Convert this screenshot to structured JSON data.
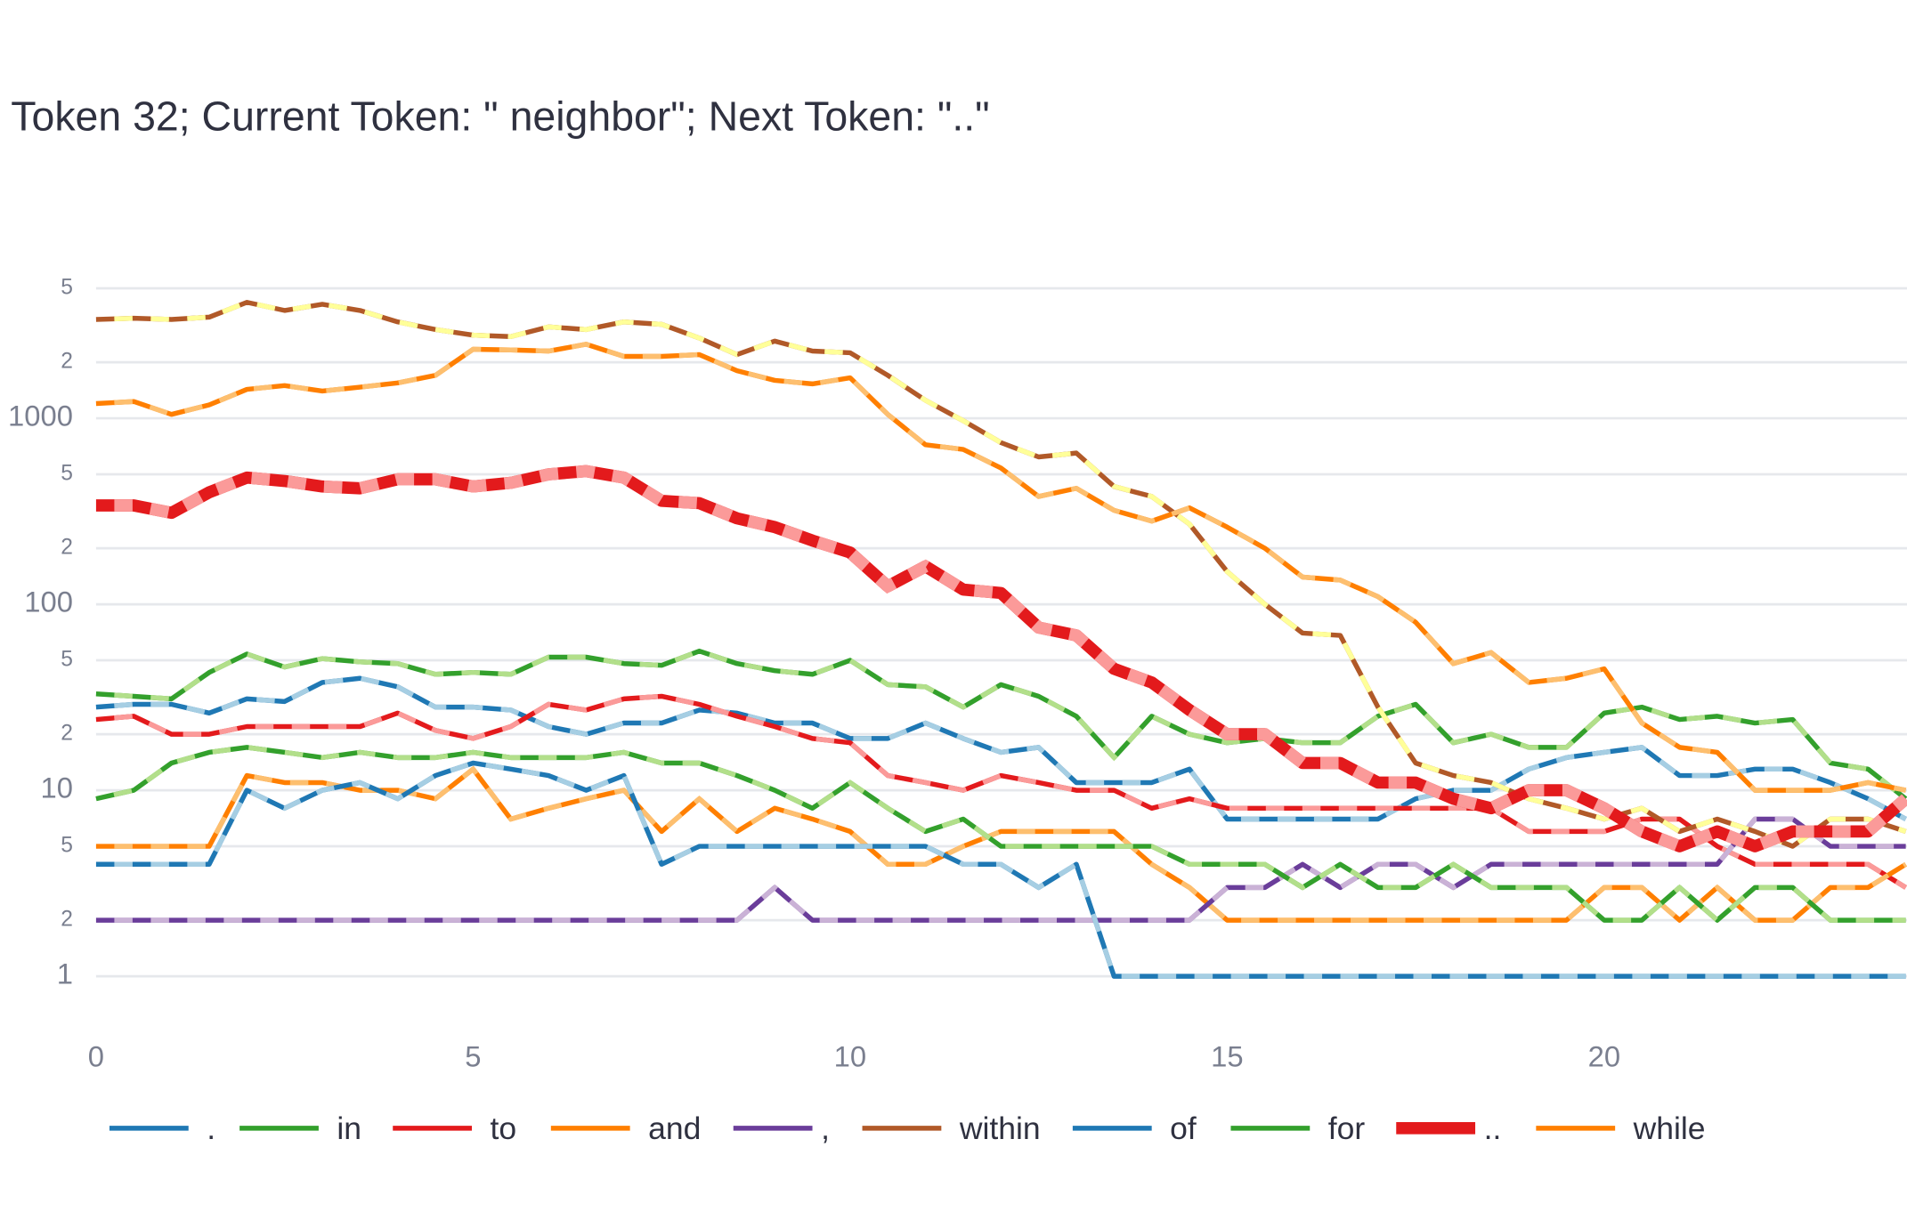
{
  "chart_data": {
    "type": "line",
    "title": "Token 32; Current Token: \" neighbor\"; Next Token: \"..\"",
    "yscale": "log",
    "grid": true,
    "xlim": [
      0,
      24
    ],
    "xticks": [
      0,
      5,
      10,
      15,
      20
    ],
    "ylim": [
      0.57,
      8700
    ],
    "yticks": [
      1,
      2,
      5,
      10,
      {
        "value": 20,
        "label": "2"
      },
      {
        "value": 50,
        "label": "5"
      },
      100,
      {
        "value": 200,
        "label": "2"
      },
      {
        "value": 500,
        "label": "5"
      },
      1000,
      {
        "value": 2000,
        "label": "2"
      },
      {
        "value": 5000,
        "label": "5"
      }
    ],
    "x": [
      0,
      0.5,
      1,
      1.5,
      2,
      2.5,
      3,
      3.5,
      4,
      4.5,
      5,
      5.5,
      6,
      6.5,
      7,
      7.5,
      8,
      8.5,
      9,
      9.5,
      10,
      10.5,
      11,
      11.5,
      12,
      12.5,
      13,
      13.5,
      14,
      14.5,
      15,
      15.5,
      16,
      16.5,
      17,
      17.5,
      18,
      18.5,
      19,
      19.5,
      20,
      20.5,
      21,
      21.5,
      22,
      22.5,
      23,
      23.5,
      24
    ],
    "series": [
      {
        "name": ".",
        "color": "#1f78b4",
        "alt_color": "#a6cee3",
        "values": [
          28,
          29,
          29,
          26,
          31,
          30,
          38,
          40,
          36,
          28,
          28,
          27,
          22,
          20,
          23,
          23,
          27,
          26,
          23,
          23,
          19,
          19,
          23,
          19,
          16,
          17,
          11,
          11,
          11,
          13,
          7,
          7,
          7,
          7,
          7,
          9,
          10,
          10,
          13,
          15,
          16,
          17,
          12,
          12,
          13,
          13,
          11,
          9,
          7
        ]
      },
      {
        "name": "in",
        "color": "#33a02c",
        "alt_color": "#b2df8a",
        "values": [
          33,
          32,
          31,
          43,
          54,
          46,
          51,
          49,
          48,
          42,
          43,
          42,
          52,
          52,
          48,
          47,
          56,
          48,
          44,
          42,
          50,
          37,
          36,
          28,
          37,
          32,
          25,
          15,
          25,
          20,
          18,
          19,
          18,
          18,
          25,
          29,
          18,
          20,
          17,
          17,
          26,
          28,
          24,
          25,
          23,
          24,
          14,
          13,
          9
        ]
      },
      {
        "name": "to",
        "color": "#e31a1c",
        "alt_color": "#fb9a99",
        "values": [
          24,
          25,
          20,
          20,
          22,
          22,
          22,
          22,
          26,
          21,
          19,
          22,
          29,
          27,
          31,
          32,
          29,
          25,
          22,
          19,
          18,
          12,
          11,
          10,
          12,
          11,
          10,
          10,
          8,
          9,
          8,
          8,
          8,
          8,
          8,
          8,
          8,
          8,
          6,
          6,
          6,
          7,
          7,
          5,
          4,
          4,
          4,
          4,
          3
        ]
      },
      {
        "name": "and",
        "color": "#ff7f00",
        "alt_color": "#fdbf6f",
        "values": [
          5,
          5,
          5,
          5,
          12,
          11,
          11,
          10,
          10,
          9,
          13,
          7,
          8,
          9,
          10,
          6,
          9,
          6,
          8,
          7,
          6,
          4,
          4,
          5,
          6,
          6,
          6,
          6,
          4,
          3,
          2,
          2,
          2,
          2,
          2,
          2,
          2,
          2,
          2,
          2,
          3,
          3,
          2,
          3,
          2,
          2,
          3,
          3,
          4
        ]
      },
      {
        "name": ",",
        "color": "#6a3d9a",
        "alt_color": "#cab2d6",
        "values": [
          2,
          2,
          2,
          2,
          2,
          2,
          2,
          2,
          2,
          2,
          2,
          2,
          2,
          2,
          2,
          2,
          2,
          2,
          3,
          2,
          2,
          2,
          2,
          2,
          2,
          2,
          2,
          2,
          2,
          2,
          3,
          3,
          4,
          3,
          4,
          4,
          3,
          4,
          4,
          4,
          4,
          4,
          4,
          4,
          7,
          7,
          5,
          5,
          5
        ]
      },
      {
        "name": "within",
        "color": "#b15928",
        "alt_color": "#ffff99",
        "values": [
          3400,
          3450,
          3400,
          3500,
          4200,
          3800,
          4100,
          3800,
          3300,
          3000,
          2800,
          2750,
          3100,
          3000,
          3300,
          3200,
          2700,
          2200,
          2600,
          2300,
          2250,
          1700,
          1250,
          970,
          740,
          620,
          650,
          430,
          380,
          270,
          150,
          100,
          70,
          68,
          28,
          14,
          12,
          11,
          9,
          8,
          7,
          8,
          6,
          7,
          6,
          5,
          7,
          7,
          6
        ]
      },
      {
        "name": "of",
        "color": "#1f78b4",
        "alt_color": "#a6cee3",
        "values": [
          4,
          4,
          4,
          4,
          10,
          8,
          10,
          11,
          9,
          12,
          14,
          13,
          12,
          10,
          12,
          4,
          5,
          5,
          5,
          5,
          5,
          5,
          5,
          4,
          4,
          3,
          4,
          1,
          1,
          1,
          1,
          1,
          1,
          1,
          1,
          1,
          1,
          1,
          1,
          1,
          1,
          1,
          1,
          1,
          1,
          1,
          1,
          1,
          1
        ]
      },
      {
        "name": "for",
        "color": "#33a02c",
        "alt_color": "#b2df8a",
        "values": [
          9,
          10,
          14,
          16,
          17,
          16,
          15,
          16,
          15,
          15,
          16,
          15,
          15,
          15,
          16,
          14,
          14,
          12,
          10,
          8,
          11,
          8,
          6,
          7,
          5,
          5,
          5,
          5,
          5,
          4,
          4,
          4,
          3,
          4,
          3,
          3,
          4,
          3,
          3,
          3,
          2,
          2,
          3,
          2,
          3,
          3,
          2,
          2,
          2
        ]
      },
      {
        "name": "..",
        "color": "#e31a1c",
        "alt_color": "#fb9a99",
        "values": [
          340,
          340,
          310,
          400,
          480,
          460,
          430,
          420,
          470,
          470,
          430,
          450,
          500,
          520,
          480,
          360,
          350,
          290,
          260,
          220,
          190,
          125,
          160,
          120,
          115,
          75,
          68,
          45,
          38,
          27,
          20,
          20,
          14,
          14,
          11,
          11,
          9,
          8,
          10,
          10,
          8,
          6,
          5,
          6,
          5,
          6,
          6,
          6,
          9
        ]
      },
      {
        "name": "while",
        "color": "#ff7f00",
        "alt_color": "#fdbf6f",
        "values": [
          1200,
          1230,
          1050,
          1180,
          1430,
          1500,
          1400,
          1470,
          1550,
          1700,
          2350,
          2330,
          2300,
          2500,
          2150,
          2150,
          2200,
          1800,
          1600,
          1530,
          1650,
          1050,
          720,
          680,
          540,
          380,
          420,
          320,
          280,
          330,
          260,
          200,
          140,
          135,
          110,
          80,
          48,
          55,
          38,
          40,
          45,
          23,
          17,
          16,
          10,
          10,
          10,
          11,
          10
        ]
      }
    ]
  }
}
